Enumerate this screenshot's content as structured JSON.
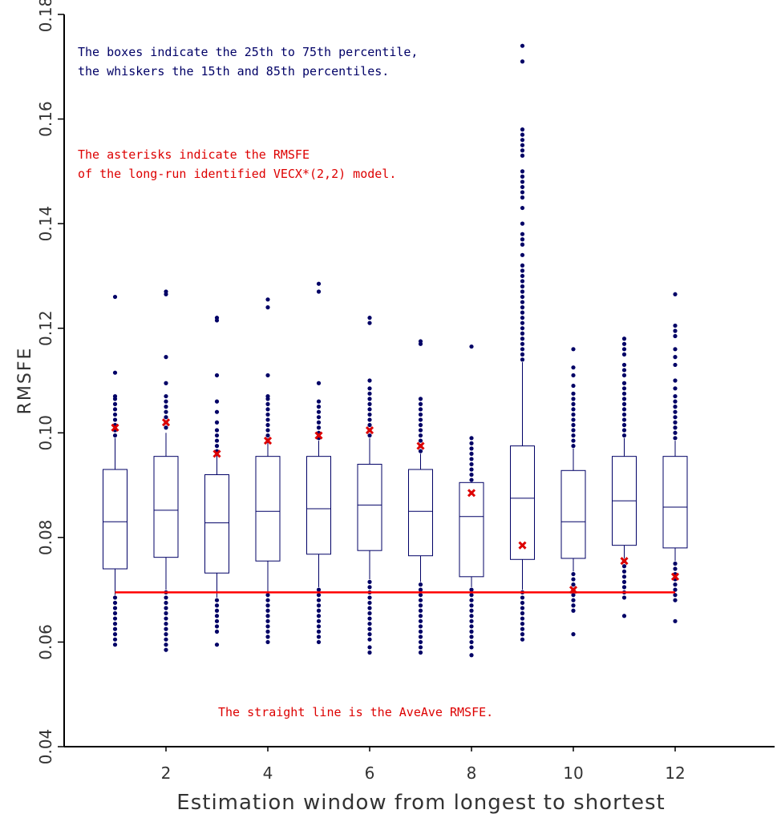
{
  "chart_data": {
    "type": "box",
    "xlabel": "Estimation window from longest to shortest",
    "ylabel": "RMSFE",
    "xlim": [
      0,
      14
    ],
    "ylim": [
      0.04,
      0.18
    ],
    "xticks": [
      2,
      4,
      6,
      8,
      10,
      12
    ],
    "yticks": [
      0.04,
      0.06,
      0.08,
      0.1,
      0.12,
      0.14,
      0.16,
      0.18
    ],
    "ytick_labels": [
      "0.04",
      "0.06",
      "0.08",
      "0.10",
      "0.12",
      "0.14",
      "0.16",
      "0.18"
    ],
    "annotations": {
      "box_note_1": "The boxes indicate the 25th to 75th percentile,",
      "box_note_2": "the whiskers the 15th and 85th percentiles.",
      "asterisk_note_1": "The asterisks indicate the RMSFE",
      "asterisk_note_2": "of the long-run identified VECX*(2,2) model.",
      "line_note": "The straight line is the AveAve RMSFE."
    },
    "reference_line": {
      "y": 0.0695,
      "x_start": 1,
      "x_end": 12
    },
    "boxes": [
      {
        "x": 1,
        "q1": 0.074,
        "median": 0.083,
        "q3": 0.093,
        "whisker_low": 0.069,
        "whisker_high": 0.099,
        "vecx": 0.101,
        "outliers_low": [
          0.0685,
          0.0675,
          0.0665,
          0.0655,
          0.0645,
          0.0635,
          0.0625,
          0.0615,
          0.0605,
          0.0595
        ],
        "outliers_high": [
          0.0995,
          0.1005,
          0.1015,
          0.1025,
          0.1035,
          0.1045,
          0.1055,
          0.1065,
          0.107,
          0.1115,
          0.126
        ]
      },
      {
        "x": 2,
        "q1": 0.0762,
        "median": 0.0852,
        "q3": 0.0955,
        "whisker_low": 0.07,
        "whisker_high": 0.1,
        "vecx": 0.102,
        "outliers_low": [
          0.0695,
          0.0685,
          0.0675,
          0.0665,
          0.0655,
          0.0645,
          0.0635,
          0.0625,
          0.0615,
          0.0605,
          0.0595,
          0.0585
        ],
        "outliers_high": [
          0.101,
          0.102,
          0.103,
          0.104,
          0.105,
          0.106,
          0.107,
          0.1095,
          0.1145,
          0.1265,
          0.127
        ]
      },
      {
        "x": 3,
        "q1": 0.0732,
        "median": 0.0828,
        "q3": 0.092,
        "whisker_low": 0.0685,
        "whisker_high": 0.096,
        "vecx": 0.096,
        "outliers_low": [
          0.068,
          0.067,
          0.066,
          0.065,
          0.064,
          0.063,
          0.062,
          0.0595
        ],
        "outliers_high": [
          0.0965,
          0.0975,
          0.0985,
          0.0995,
          0.1005,
          0.102,
          0.104,
          0.106,
          0.111,
          0.1215,
          0.122
        ]
      },
      {
        "x": 4,
        "q1": 0.0755,
        "median": 0.085,
        "q3": 0.0955,
        "whisker_low": 0.0695,
        "whisker_high": 0.099,
        "vecx": 0.0985,
        "outliers_low": [
          0.069,
          0.068,
          0.067,
          0.066,
          0.065,
          0.064,
          0.063,
          0.062,
          0.061,
          0.06
        ],
        "outliers_high": [
          0.0995,
          0.1005,
          0.1015,
          0.1025,
          0.1035,
          0.1045,
          0.1055,
          0.1065,
          0.107,
          0.111,
          0.124,
          0.1255
        ]
      },
      {
        "x": 5,
        "q1": 0.0768,
        "median": 0.0855,
        "q3": 0.0955,
        "whisker_low": 0.0705,
        "whisker_high": 0.0985,
        "vecx": 0.0995,
        "outliers_low": [
          0.07,
          0.069,
          0.068,
          0.067,
          0.066,
          0.065,
          0.064,
          0.063,
          0.062,
          0.061,
          0.06
        ],
        "outliers_high": [
          0.099,
          0.1,
          0.101,
          0.102,
          0.103,
          0.104,
          0.105,
          0.106,
          0.1095,
          0.127,
          0.1285
        ]
      },
      {
        "x": 6,
        "q1": 0.0775,
        "median": 0.0862,
        "q3": 0.094,
        "whisker_low": 0.072,
        "whisker_high": 0.099,
        "vecx": 0.1005,
        "outliers_low": [
          0.0715,
          0.0705,
          0.0695,
          0.0685,
          0.0675,
          0.0665,
          0.0655,
          0.0645,
          0.0635,
          0.0625,
          0.0615,
          0.0605,
          0.059,
          0.058
        ],
        "outliers_high": [
          0.0995,
          0.1005,
          0.1015,
          0.1025,
          0.1035,
          0.1045,
          0.1055,
          0.1065,
          0.1075,
          0.1085,
          0.11,
          0.121,
          0.122
        ]
      },
      {
        "x": 7,
        "q1": 0.0765,
        "median": 0.085,
        "q3": 0.093,
        "whisker_low": 0.0715,
        "whisker_high": 0.096,
        "vecx": 0.0975,
        "outliers_low": [
          0.071,
          0.07,
          0.069,
          0.068,
          0.067,
          0.066,
          0.065,
          0.064,
          0.063,
          0.062,
          0.061,
          0.06,
          0.059,
          0.058
        ],
        "outliers_high": [
          0.0965,
          0.0975,
          0.0985,
          0.0995,
          0.1005,
          0.1015,
          0.1025,
          0.1035,
          0.1045,
          0.1055,
          0.1065,
          0.117,
          0.1175
        ]
      },
      {
        "x": 8,
        "q1": 0.0725,
        "median": 0.084,
        "q3": 0.0905,
        "whisker_low": 0.0705,
        "whisker_high": 0.0905,
        "vecx": 0.0885,
        "outliers_low": [
          0.07,
          0.069,
          0.068,
          0.067,
          0.066,
          0.065,
          0.064,
          0.063,
          0.062,
          0.061,
          0.06,
          0.059,
          0.0575
        ],
        "outliers_high": [
          0.091,
          0.092,
          0.093,
          0.094,
          0.095,
          0.096,
          0.097,
          0.098,
          0.099,
          0.1165
        ]
      },
      {
        "x": 9,
        "q1": 0.0758,
        "median": 0.0875,
        "q3": 0.0975,
        "whisker_low": 0.07,
        "whisker_high": 0.1135,
        "vecx": 0.0785,
        "outliers_low": [
          0.0695,
          0.0685,
          0.0675,
          0.0665,
          0.0655,
          0.0645,
          0.0635,
          0.0625,
          0.0615,
          0.0605
        ],
        "outliers_high": [
          0.114,
          0.115,
          0.116,
          0.117,
          0.118,
          0.119,
          0.12,
          0.121,
          0.122,
          0.123,
          0.124,
          0.125,
          0.126,
          0.127,
          0.128,
          0.129,
          0.13,
          0.131,
          0.132,
          0.134,
          0.136,
          0.137,
          0.138,
          0.14,
          0.143,
          0.145,
          0.146,
          0.147,
          0.148,
          0.149,
          0.15,
          0.153,
          0.154,
          0.155,
          0.156,
          0.157,
          0.158,
          0.171,
          0.174
        ]
      },
      {
        "x": 10,
        "q1": 0.076,
        "median": 0.083,
        "q3": 0.0928,
        "whisker_low": 0.0735,
        "whisker_high": 0.097,
        "vecx": 0.07,
        "outliers_low": [
          0.073,
          0.072,
          0.071,
          0.07,
          0.069,
          0.068,
          0.067,
          0.066,
          0.0615
        ],
        "outliers_high": [
          0.0975,
          0.0985,
          0.0995,
          0.1005,
          0.1015,
          0.1025,
          0.1035,
          0.1045,
          0.1055,
          0.1065,
          0.1075,
          0.109,
          0.111,
          0.1125,
          0.116
        ]
      },
      {
        "x": 11,
        "q1": 0.0785,
        "median": 0.087,
        "q3": 0.0955,
        "whisker_low": 0.076,
        "whisker_high": 0.099,
        "vecx": 0.0755,
        "outliers_low": [
          0.0755,
          0.0745,
          0.0735,
          0.0725,
          0.0715,
          0.0705,
          0.0695,
          0.0685,
          0.065
        ],
        "outliers_high": [
          0.0995,
          0.1005,
          0.1015,
          0.1025,
          0.1035,
          0.1045,
          0.1055,
          0.1065,
          0.1075,
          0.1085,
          0.1095,
          0.111,
          0.112,
          0.113,
          0.115,
          0.116,
          0.117,
          0.118
        ]
      },
      {
        "x": 12,
        "q1": 0.078,
        "median": 0.0858,
        "q3": 0.0955,
        "whisker_low": 0.0755,
        "whisker_high": 0.0985,
        "vecx": 0.0725,
        "outliers_low": [
          0.075,
          0.074,
          0.073,
          0.072,
          0.071,
          0.07,
          0.069,
          0.068,
          0.064
        ],
        "outliers_high": [
          0.099,
          0.1,
          0.101,
          0.102,
          0.103,
          0.104,
          0.105,
          0.106,
          0.107,
          0.1085,
          0.11,
          0.113,
          0.1145,
          0.116,
          0.1185,
          0.1195,
          0.1205,
          0.1265
        ]
      }
    ],
    "colors": {
      "box": "#000066",
      "outlier": "#000066",
      "vecx": "#dd0000",
      "reference_line": "#ff0000",
      "box_note": "#000066",
      "red_note": "#dd0000",
      "axis": "#000000"
    }
  }
}
